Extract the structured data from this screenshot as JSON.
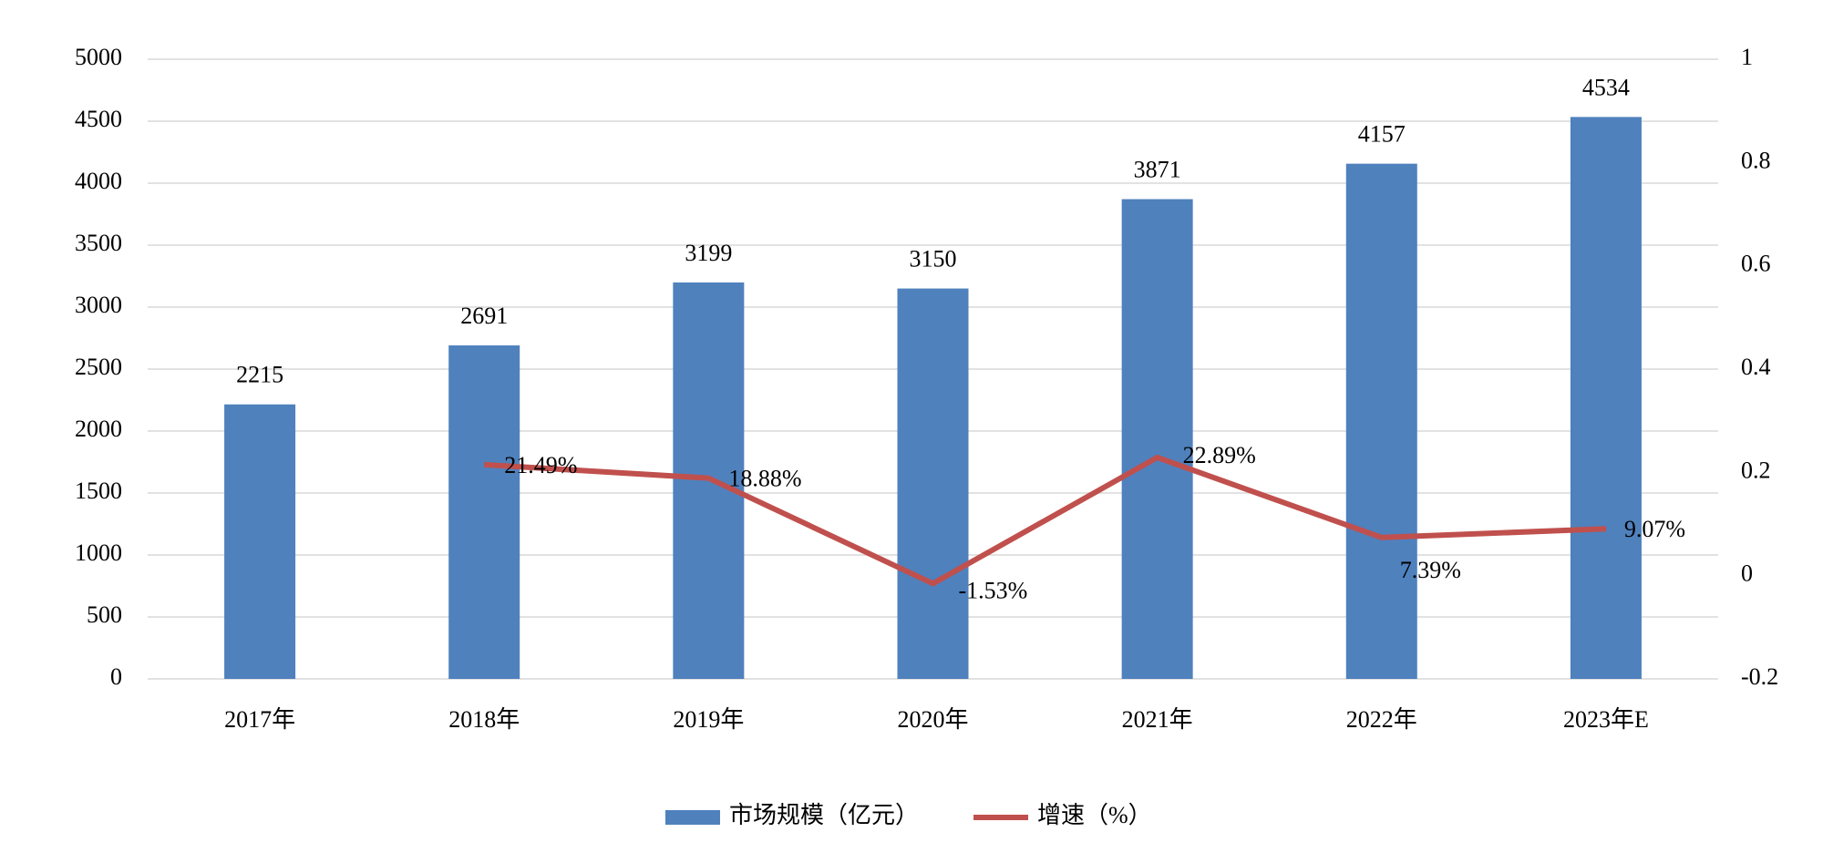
{
  "chart_data": {
    "type": "bar",
    "categories": [
      "2017年",
      "2018年",
      "2019年",
      "2020年",
      "2021年",
      "2022年",
      "2023年E"
    ],
    "series": [
      {
        "name": "市场规模（亿元）",
        "color": "#4f81bd",
        "type": "bar",
        "values": [
          2215,
          2691,
          3199,
          3150,
          3871,
          4157,
          4534
        ]
      },
      {
        "name": "增速（%）",
        "color": "#c0504d",
        "type": "line",
        "axis": "y2",
        "values": [
          null,
          0.2149,
          0.1888,
          -0.0153,
          0.2289,
          0.0739,
          0.0907
        ],
        "value_labels": [
          null,
          "21.49%",
          "18.88%",
          "-1.53%",
          "22.89%",
          "7.39%",
          "9.07%"
        ]
      }
    ],
    "ylim": [
      0,
      5000
    ],
    "yticks": [
      0,
      500,
      1000,
      1500,
      2000,
      2500,
      3000,
      3500,
      4000,
      4500,
      5000
    ],
    "y2lim": [
      -0.2,
      1
    ],
    "y2ticks": [
      -0.2,
      0,
      0.2,
      0.4,
      0.6,
      0.8,
      1
    ],
    "grid": true,
    "legend": "bottom"
  }
}
